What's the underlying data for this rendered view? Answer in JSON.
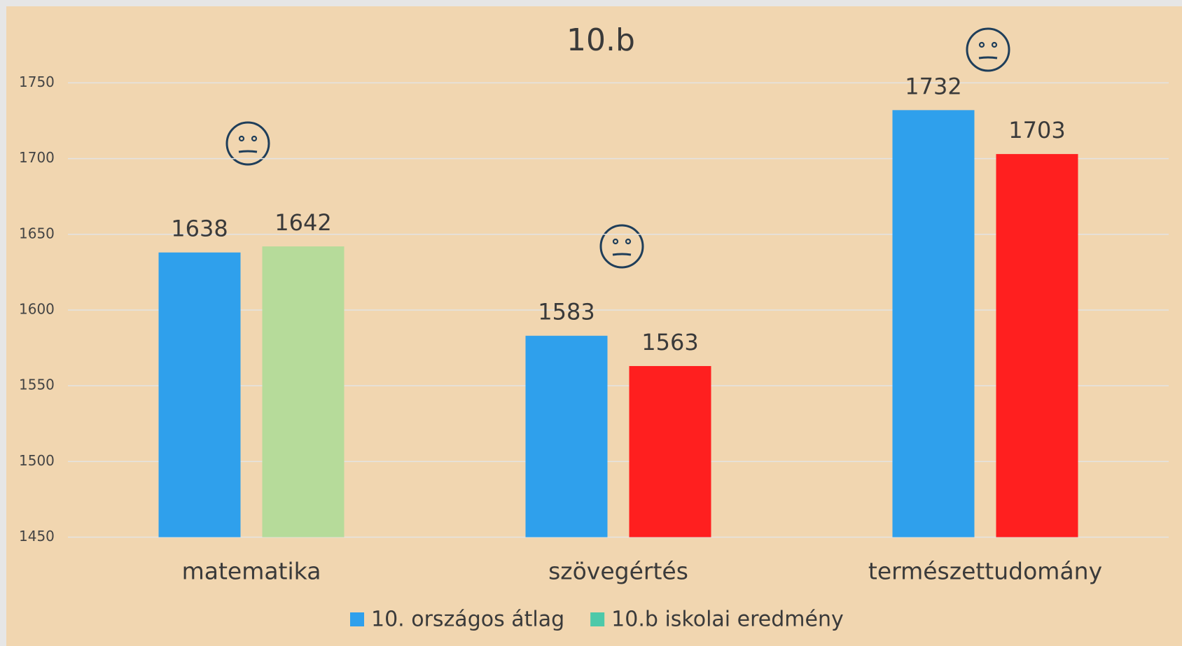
{
  "chart_data": {
    "type": "bar",
    "title": "10.b",
    "categories": [
      "matematika",
      "szövegértés",
      "természettudomány"
    ],
    "series": [
      {
        "name": "10. országos átlag",
        "color": "#2fa0ec",
        "values": [
          1638,
          1583,
          1732
        ]
      },
      {
        "name": "10.b iskolai eredmény",
        "color": "#4dc9a9",
        "colors": [
          "#b6db9a",
          "#ff1f1f",
          "#ff1f1f"
        ],
        "values": [
          1642,
          1563,
          1703
        ]
      }
    ],
    "ylim": [
      1450,
      1750
    ],
    "yticks": [
      1450,
      1500,
      1550,
      1600,
      1650,
      1700,
      1750
    ],
    "grid": true,
    "legend": "bottom"
  }
}
